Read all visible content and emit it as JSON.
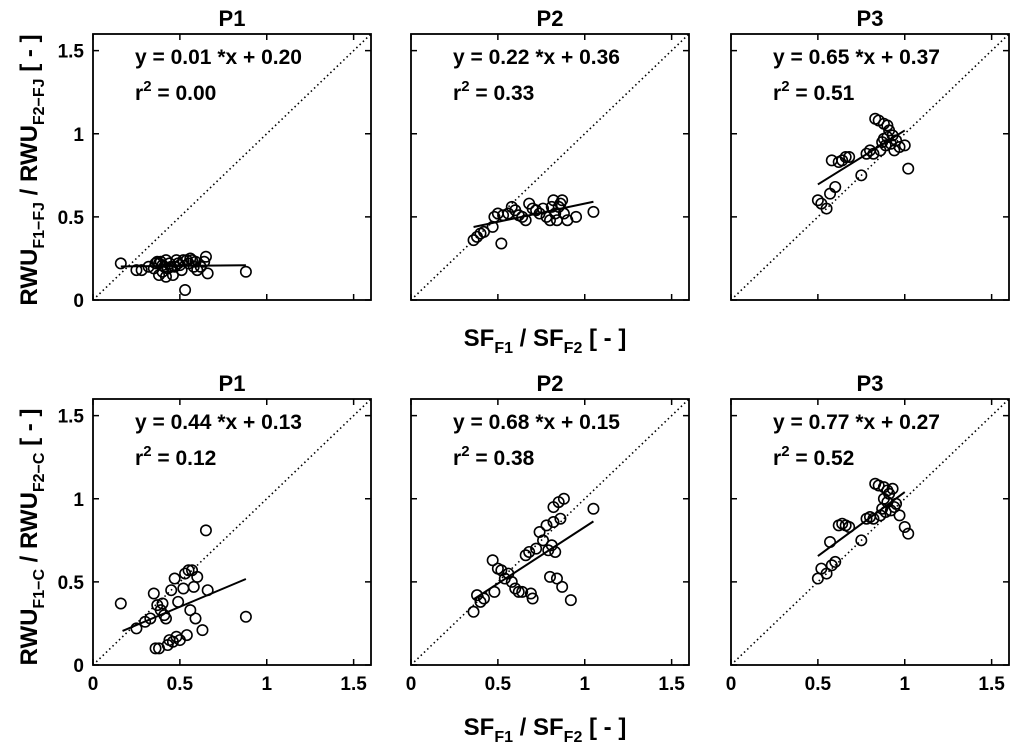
{
  "figure": {
    "row_ylabels": [
      {
        "main": "RWU",
        "sub1": "F1−FJ",
        "mid": " / RWU",
        "sub2": "F2−FJ",
        "tail": " [ - ]"
      },
      {
        "main": "RWU",
        "sub1": "F1−C",
        "mid": " / RWU",
        "sub2": "F2−C",
        "tail": " [ - ]"
      }
    ],
    "xlabel": {
      "main": "SF",
      "sub1": "F1",
      "mid": " / SF",
      "sub2": "F2",
      "tail": " [ - ]"
    }
  },
  "chart_data": [
    {
      "type": "scatter",
      "title": "P1",
      "eq": "y = 0.01 *x + 0.20",
      "r2_label": "r",
      "r2_sup": "2",
      "r2_val": " = 0.00",
      "xlim": [
        0,
        1.6
      ],
      "ylim": [
        0,
        1.6
      ],
      "xticks": [
        "0",
        "0.5",
        "1",
        "1.5"
      ],
      "yticks": [
        "0",
        "0.5",
        "1",
        "1.5"
      ],
      "show_xticklabels": false,
      "show_yticklabels": true,
      "fit": {
        "slope": 0.01,
        "intercept": 0.2,
        "x_range": [
          0.16,
          0.88
        ]
      },
      "points": [
        [
          0.16,
          0.22
        ],
        [
          0.25,
          0.18
        ],
        [
          0.28,
          0.18
        ],
        [
          0.32,
          0.2
        ],
        [
          0.35,
          0.19
        ],
        [
          0.36,
          0.22
        ],
        [
          0.37,
          0.23
        ],
        [
          0.38,
          0.15
        ],
        [
          0.38,
          0.22
        ],
        [
          0.39,
          0.23
        ],
        [
          0.4,
          0.21
        ],
        [
          0.4,
          0.17
        ],
        [
          0.41,
          0.2
        ],
        [
          0.42,
          0.24
        ],
        [
          0.42,
          0.14
        ],
        [
          0.43,
          0.19
        ],
        [
          0.44,
          0.22
        ],
        [
          0.45,
          0.2
        ],
        [
          0.46,
          0.15
        ],
        [
          0.47,
          0.2
        ],
        [
          0.48,
          0.24
        ],
        [
          0.49,
          0.22
        ],
        [
          0.5,
          0.21
        ],
        [
          0.51,
          0.18
        ],
        [
          0.52,
          0.24
        ],
        [
          0.53,
          0.06
        ],
        [
          0.54,
          0.24
        ],
        [
          0.55,
          0.22
        ],
        [
          0.56,
          0.25
        ],
        [
          0.57,
          0.24
        ],
        [
          0.58,
          0.2
        ],
        [
          0.59,
          0.23
        ],
        [
          0.6,
          0.18
        ],
        [
          0.62,
          0.2
        ],
        [
          0.64,
          0.23
        ],
        [
          0.65,
          0.26
        ],
        [
          0.66,
          0.16
        ],
        [
          0.88,
          0.17
        ]
      ]
    },
    {
      "type": "scatter",
      "title": "P2",
      "eq": "y = 0.22 *x + 0.36",
      "r2_label": "r",
      "r2_sup": "2",
      "r2_val": " = 0.33",
      "xlim": [
        0,
        1.6
      ],
      "ylim": [
        0,
        1.6
      ],
      "xticks": [
        "0",
        "0.5",
        "1",
        "1.5"
      ],
      "yticks": [
        "0",
        "0.5",
        "1",
        "1.5"
      ],
      "show_xticklabels": false,
      "show_yticklabels": false,
      "fit": {
        "slope": 0.22,
        "intercept": 0.36,
        "x_range": [
          0.36,
          1.05
        ]
      },
      "points": [
        [
          0.36,
          0.36
        ],
        [
          0.38,
          0.38
        ],
        [
          0.4,
          0.4
        ],
        [
          0.42,
          0.41
        ],
        [
          0.47,
          0.44
        ],
        [
          0.48,
          0.5
        ],
        [
          0.5,
          0.52
        ],
        [
          0.52,
          0.34
        ],
        [
          0.53,
          0.51
        ],
        [
          0.56,
          0.52
        ],
        [
          0.58,
          0.56
        ],
        [
          0.6,
          0.54
        ],
        [
          0.62,
          0.51
        ],
        [
          0.64,
          0.5
        ],
        [
          0.66,
          0.48
        ],
        [
          0.68,
          0.58
        ],
        [
          0.7,
          0.55
        ],
        [
          0.72,
          0.54
        ],
        [
          0.74,
          0.52
        ],
        [
          0.76,
          0.55
        ],
        [
          0.78,
          0.5
        ],
        [
          0.8,
          0.48
        ],
        [
          0.81,
          0.56
        ],
        [
          0.82,
          0.6
        ],
        [
          0.83,
          0.52
        ],
        [
          0.84,
          0.48
        ],
        [
          0.85,
          0.56
        ],
        [
          0.86,
          0.58
        ],
        [
          0.87,
          0.6
        ],
        [
          0.88,
          0.52
        ],
        [
          0.9,
          0.48
        ],
        [
          0.95,
          0.5
        ],
        [
          1.05,
          0.53
        ]
      ]
    },
    {
      "type": "scatter",
      "title": "P3",
      "eq": "y = 0.65 *x + 0.37",
      "r2_label": "r",
      "r2_sup": "2",
      "r2_val": " = 0.51",
      "xlim": [
        0,
        1.6
      ],
      "ylim": [
        0,
        1.6
      ],
      "xticks": [
        "0",
        "0.5",
        "1",
        "1.5"
      ],
      "yticks": [
        "0",
        "0.5",
        "1",
        "1.5"
      ],
      "show_xticklabels": false,
      "show_yticklabels": false,
      "fit": {
        "slope": 0.65,
        "intercept": 0.37,
        "x_range": [
          0.5,
          1.0
        ]
      },
      "points": [
        [
          0.5,
          0.6
        ],
        [
          0.52,
          0.58
        ],
        [
          0.55,
          0.55
        ],
        [
          0.57,
          0.64
        ],
        [
          0.58,
          0.84
        ],
        [
          0.6,
          0.68
        ],
        [
          0.62,
          0.83
        ],
        [
          0.64,
          0.84
        ],
        [
          0.66,
          0.86
        ],
        [
          0.68,
          0.86
        ],
        [
          0.75,
          0.75
        ],
        [
          0.78,
          0.88
        ],
        [
          0.8,
          0.9
        ],
        [
          0.82,
          0.88
        ],
        [
          0.83,
          1.09
        ],
        [
          0.85,
          1.08
        ],
        [
          0.86,
          0.9
        ],
        [
          0.87,
          0.95
        ],
        [
          0.88,
          0.97
        ],
        [
          0.88,
          1.06
        ],
        [
          0.89,
          0.93
        ],
        [
          0.9,
          1.05
        ],
        [
          0.9,
          0.98
        ],
        [
          0.91,
          1.02
        ],
        [
          0.92,
          0.94
        ],
        [
          0.93,
          0.99
        ],
        [
          0.94,
          0.9
        ],
        [
          0.95,
          0.96
        ],
        [
          0.97,
          0.92
        ],
        [
          1.0,
          0.93
        ],
        [
          1.02,
          0.79
        ]
      ]
    },
    {
      "type": "scatter",
      "title": "P1",
      "eq": "y = 0.44 *x + 0.13",
      "r2_label": "r",
      "r2_sup": "2",
      "r2_val": " = 0.12",
      "xlim": [
        0,
        1.6
      ],
      "ylim": [
        0,
        1.6
      ],
      "xticks": [
        "0",
        "0.5",
        "1",
        "1.5"
      ],
      "yticks": [
        "0",
        "0.5",
        "1",
        "1.5"
      ],
      "show_xticklabels": true,
      "show_yticklabels": true,
      "fit": {
        "slope": 0.44,
        "intercept": 0.13,
        "x_range": [
          0.17,
          0.88
        ]
      },
      "points": [
        [
          0.16,
          0.37
        ],
        [
          0.25,
          0.22
        ],
        [
          0.3,
          0.26
        ],
        [
          0.33,
          0.28
        ],
        [
          0.35,
          0.43
        ],
        [
          0.36,
          0.1
        ],
        [
          0.37,
          0.36
        ],
        [
          0.38,
          0.1
        ],
        [
          0.39,
          0.33
        ],
        [
          0.4,
          0.37
        ],
        [
          0.41,
          0.3
        ],
        [
          0.42,
          0.28
        ],
        [
          0.43,
          0.12
        ],
        [
          0.44,
          0.15
        ],
        [
          0.45,
          0.45
        ],
        [
          0.46,
          0.14
        ],
        [
          0.47,
          0.52
        ],
        [
          0.48,
          0.17
        ],
        [
          0.49,
          0.38
        ],
        [
          0.5,
          0.15
        ],
        [
          0.52,
          0.46
        ],
        [
          0.53,
          0.55
        ],
        [
          0.54,
          0.18
        ],
        [
          0.55,
          0.57
        ],
        [
          0.56,
          0.33
        ],
        [
          0.57,
          0.57
        ],
        [
          0.58,
          0.47
        ],
        [
          0.59,
          0.28
        ],
        [
          0.6,
          0.53
        ],
        [
          0.63,
          0.21
        ],
        [
          0.65,
          0.81
        ],
        [
          0.66,
          0.45
        ],
        [
          0.88,
          0.29
        ]
      ]
    },
    {
      "type": "scatter",
      "title": "P2",
      "eq": "y = 0.68 *x + 0.15",
      "r2_label": "r",
      "r2_sup": "2",
      "r2_val": " = 0.38",
      "xlim": [
        0,
        1.6
      ],
      "ylim": [
        0,
        1.6
      ],
      "xticks": [
        "0",
        "0.5",
        "1",
        "1.5"
      ],
      "yticks": [
        "0",
        "0.5",
        "1",
        "1.5"
      ],
      "show_xticklabels": true,
      "show_yticklabels": false,
      "fit": {
        "slope": 0.68,
        "intercept": 0.15,
        "x_range": [
          0.36,
          1.05
        ]
      },
      "points": [
        [
          0.36,
          0.32
        ],
        [
          0.38,
          0.42
        ],
        [
          0.4,
          0.38
        ],
        [
          0.42,
          0.4
        ],
        [
          0.47,
          0.63
        ],
        [
          0.48,
          0.44
        ],
        [
          0.5,
          0.58
        ],
        [
          0.52,
          0.57
        ],
        [
          0.54,
          0.52
        ],
        [
          0.56,
          0.55
        ],
        [
          0.58,
          0.5
        ],
        [
          0.6,
          0.46
        ],
        [
          0.62,
          0.44
        ],
        [
          0.64,
          0.44
        ],
        [
          0.66,
          0.66
        ],
        [
          0.68,
          0.68
        ],
        [
          0.69,
          0.43
        ],
        [
          0.7,
          0.4
        ],
        [
          0.72,
          0.7
        ],
        [
          0.74,
          0.8
        ],
        [
          0.76,
          0.75
        ],
        [
          0.78,
          0.84
        ],
        [
          0.79,
          0.69
        ],
        [
          0.8,
          0.53
        ],
        [
          0.81,
          0.72
        ],
        [
          0.82,
          0.86
        ],
        [
          0.82,
          0.95
        ],
        [
          0.83,
          0.68
        ],
        [
          0.84,
          0.52
        ],
        [
          0.85,
          0.98
        ],
        [
          0.86,
          0.88
        ],
        [
          0.87,
          0.47
        ],
        [
          0.88,
          1.0
        ],
        [
          0.92,
          0.39
        ],
        [
          1.05,
          0.94
        ]
      ]
    },
    {
      "type": "scatter",
      "title": "P3",
      "eq": "y = 0.77 *x + 0.27",
      "r2_label": "r",
      "r2_sup": "2",
      "r2_val": " = 0.52",
      "xlim": [
        0,
        1.6
      ],
      "ylim": [
        0,
        1.6
      ],
      "xticks": [
        "0",
        "0.5",
        "1",
        "1.5"
      ],
      "yticks": [
        "0",
        "0.5",
        "1",
        "1.5"
      ],
      "show_xticklabels": true,
      "show_yticklabels": false,
      "fit": {
        "slope": 0.77,
        "intercept": 0.27,
        "x_range": [
          0.5,
          1.0
        ]
      },
      "points": [
        [
          0.5,
          0.52
        ],
        [
          0.52,
          0.58
        ],
        [
          0.55,
          0.55
        ],
        [
          0.57,
          0.74
        ],
        [
          0.58,
          0.6
        ],
        [
          0.6,
          0.62
        ],
        [
          0.62,
          0.84
        ],
        [
          0.64,
          0.85
        ],
        [
          0.66,
          0.84
        ],
        [
          0.68,
          0.83
        ],
        [
          0.75,
          0.75
        ],
        [
          0.78,
          0.88
        ],
        [
          0.8,
          0.89
        ],
        [
          0.82,
          0.88
        ],
        [
          0.83,
          1.09
        ],
        [
          0.85,
          1.08
        ],
        [
          0.86,
          0.9
        ],
        [
          0.87,
          0.94
        ],
        [
          0.88,
          1.0
        ],
        [
          0.88,
          1.07
        ],
        [
          0.89,
          0.92
        ],
        [
          0.9,
          1.05
        ],
        [
          0.9,
          0.98
        ],
        [
          0.91,
          1.03
        ],
        [
          0.92,
          0.93
        ],
        [
          0.93,
          1.06
        ],
        [
          0.94,
          0.95
        ],
        [
          0.95,
          0.97
        ],
        [
          0.97,
          0.9
        ],
        [
          1.0,
          0.83
        ],
        [
          1.02,
          0.79
        ]
      ]
    }
  ]
}
